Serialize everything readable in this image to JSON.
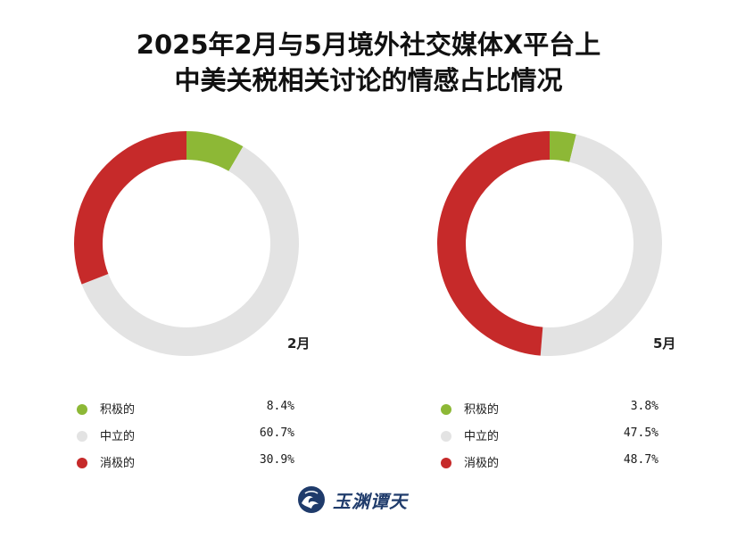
{
  "title_line1": "2025年2月与5月境外社交媒体X平台上",
  "title_line2": "中美关税相关讨论的情感占比情况",
  "colors": {
    "positive": "#8db836",
    "neutral": "#e3e3e3",
    "negative": "#c62a2a"
  },
  "chart_data": [
    {
      "type": "pie",
      "label": "2月",
      "slices": [
        {
          "name": "积极的",
          "value": 8.4,
          "display": "8.4%"
        },
        {
          "name": "中立的",
          "value": 60.7,
          "display": "60.7%"
        },
        {
          "name": "消极的",
          "value": 30.9,
          "display": "30.9%"
        }
      ]
    },
    {
      "type": "pie",
      "label": "5月",
      "slices": [
        {
          "name": "积极的",
          "value": 3.8,
          "display": "3.8%"
        },
        {
          "name": "中立的",
          "value": 47.5,
          "display": "47.5%"
        },
        {
          "name": "消极的",
          "value": 48.7,
          "display": "48.7%"
        }
      ]
    }
  ],
  "logo": {
    "text": "玉渊谭天",
    "icon": "wave-logo-icon"
  }
}
